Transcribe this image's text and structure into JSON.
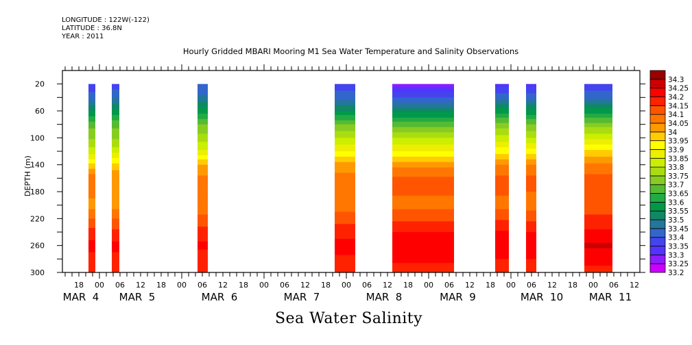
{
  "header": {
    "longitude": "LONGITUDE : 122W(-122)",
    "latitude": "LATITUDE : 36.8N",
    "year": "YEAR : 2011"
  },
  "chart_data": {
    "type": "heatmap",
    "title": "Hourly Gridded MBARI Mooring M1 Sea Water Temperature and Salinity Observations",
    "xlabel": "Sea Water Salinity",
    "ylabel": "DEPTH (m)",
    "x_units": "hours since 2011-03-05 00:00",
    "xlim": [
      -10.8,
      157.6
    ],
    "ylim": [
      300,
      0
    ],
    "y_ticks": [
      20,
      60,
      100,
      140,
      180,
      220,
      260,
      300
    ],
    "x_hour_ticks": [
      {
        "hour": -6,
        "label": "18"
      },
      {
        "hour": 0,
        "label": "00"
      },
      {
        "hour": 6,
        "label": "06"
      },
      {
        "hour": 12,
        "label": "12"
      },
      {
        "hour": 18,
        "label": "18"
      },
      {
        "hour": 24,
        "label": "00"
      },
      {
        "hour": 30,
        "label": "06"
      },
      {
        "hour": 36,
        "label": "12"
      },
      {
        "hour": 42,
        "label": "18"
      },
      {
        "hour": 48,
        "label": "00"
      },
      {
        "hour": 54,
        "label": "06"
      },
      {
        "hour": 60,
        "label": "12"
      },
      {
        "hour": 66,
        "label": "18"
      },
      {
        "hour": 72,
        "label": "00"
      },
      {
        "hour": 78,
        "label": "06"
      },
      {
        "hour": 84,
        "label": "12"
      },
      {
        "hour": 90,
        "label": "18"
      },
      {
        "hour": 96,
        "label": "00"
      },
      {
        "hour": 102,
        "label": "06"
      },
      {
        "hour": 108,
        "label": "12"
      },
      {
        "hour": 114,
        "label": "18"
      },
      {
        "hour": 120,
        "label": "00"
      },
      {
        "hour": 126,
        "label": "06"
      },
      {
        "hour": 132,
        "label": "12"
      },
      {
        "hour": 138,
        "label": "18"
      },
      {
        "hour": 144,
        "label": "00"
      },
      {
        "hour": 150,
        "label": "06"
      },
      {
        "hour": 156,
        "label": "12"
      }
    ],
    "date_labels": [
      {
        "hour": -5.4,
        "label": "MAR  4"
      },
      {
        "hour": 11,
        "label": "MAR  5"
      },
      {
        "hour": 35,
        "label": "MAR  6"
      },
      {
        "hour": 59,
        "label": "MAR  7"
      },
      {
        "hour": 83,
        "label": "MAR  8"
      },
      {
        "hour": 104.5,
        "label": "MAR  9"
      },
      {
        "hour": 129,
        "label": "MAR 10"
      },
      {
        "hour": 149,
        "label": "MAR 11"
      }
    ],
    "colorbar": {
      "levels": [
        33.2,
        33.25,
        33.3,
        33.35,
        33.4,
        33.45,
        33.5,
        33.55,
        33.6,
        33.65,
        33.7,
        33.75,
        33.8,
        33.85,
        33.9,
        33.95,
        34,
        34.05,
        34.1,
        34.15,
        34.2,
        34.25,
        34.3
      ],
      "labels": [
        "33.2",
        "33.25",
        "33.3",
        "33.35",
        "33.4",
        "33.45",
        "33.5",
        "33.55",
        "33.6",
        "33.65",
        "33.7",
        "33.75",
        "33.8",
        "33.85",
        "33.9",
        "33.95",
        "34",
        "34.05",
        "34.1",
        "34.15",
        "34.2",
        "34.25",
        "34.3"
      ],
      "colors": [
        "#cc00ff",
        "#8e1cff",
        "#5533ff",
        "#4444ee",
        "#3366cc",
        "#22779a",
        "#108866",
        "#00994a",
        "#22aa44",
        "#55bb33",
        "#88cc22",
        "#aadd11",
        "#ccee00",
        "#eeee00",
        "#ffff00",
        "#ffcc00",
        "#ff9900",
        "#ff7700",
        "#ff5500",
        "#ff2200",
        "#ff0000",
        "#cc0000",
        "#990000"
      ]
    },
    "profile_depths": [
      20,
      40,
      60,
      80,
      100,
      120,
      140,
      160,
      180,
      200,
      220,
      240,
      260,
      280,
      300
    ],
    "observation_segments": [
      {
        "start": -3.2,
        "end": -1.2,
        "salinity": [
          33.37,
          33.42,
          33.55,
          33.68,
          33.74,
          33.82,
          33.96,
          34.08,
          34.07,
          34.03,
          34.1,
          34.17,
          34.22,
          34.18,
          34.16
        ]
      },
      {
        "start": 3.6,
        "end": 5.8,
        "salinity": [
          33.36,
          33.45,
          33.56,
          33.68,
          33.74,
          33.83,
          33.97,
          34.04,
          34.04,
          34.03,
          34.1,
          34.16,
          34.22,
          34.18,
          34.16
        ]
      },
      {
        "start": 28.6,
        "end": 31.6,
        "salinity": [
          33.4,
          33.46,
          33.58,
          33.7,
          33.77,
          33.86,
          34.0,
          34.06,
          34.07,
          34.05,
          34.12,
          34.17,
          34.21,
          34.18,
          34.16
        ]
      },
      {
        "start": 68.6,
        "end": 74.6,
        "salinity": [
          33.38,
          33.42,
          33.55,
          33.7,
          33.8,
          33.9,
          34.02,
          34.07,
          34.07,
          34.07,
          34.13,
          34.18,
          34.22,
          34.19,
          34.17
        ]
      },
      {
        "start": 85.4,
        "end": 103.4,
        "salinity": [
          33.27,
          33.4,
          33.53,
          33.68,
          33.8,
          33.9,
          34.03,
          34.11,
          34.11,
          34.08,
          34.14,
          34.2,
          34.24,
          34.21,
          34.18
        ]
      },
      {
        "start": 115.4,
        "end": 119.4,
        "salinity": [
          33.32,
          33.44,
          33.57,
          33.72,
          33.82,
          33.93,
          34.05,
          34.11,
          34.11,
          34.08,
          34.14,
          34.21,
          34.22,
          34.2,
          34.17
        ]
      },
      {
        "start": 124.4,
        "end": 127.4,
        "salinity": [
          33.33,
          33.43,
          33.56,
          33.7,
          33.8,
          33.92,
          34.05,
          34.11,
          34.1,
          34.07,
          34.14,
          34.2,
          34.22,
          34.2,
          34.17
        ]
      },
      {
        "start": 141.4,
        "end": 149.6,
        "salinity": [
          33.36,
          33.44,
          33.57,
          33.72,
          33.84,
          33.96,
          34.06,
          34.12,
          34.13,
          34.12,
          34.16,
          34.21,
          34.26,
          34.21,
          34.19
        ]
      }
    ]
  }
}
